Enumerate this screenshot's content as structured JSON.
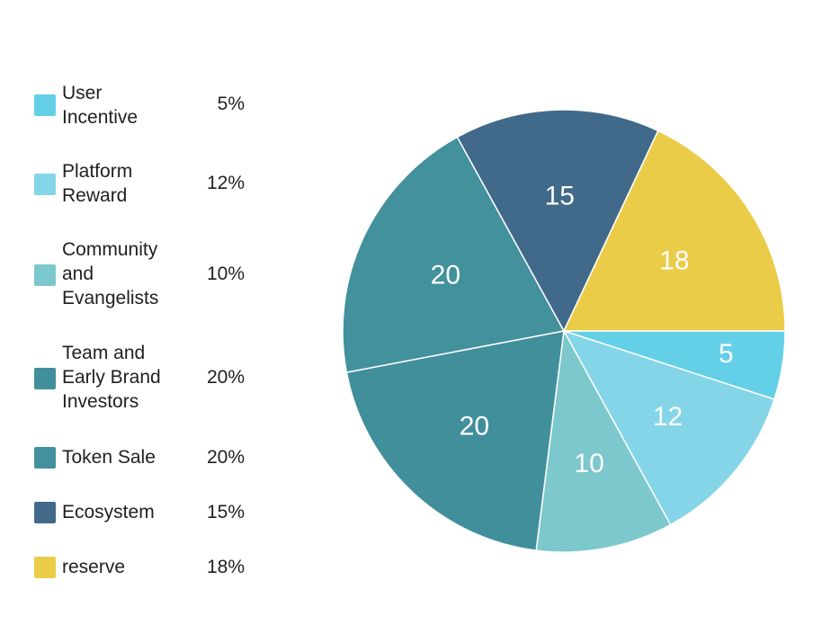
{
  "chart_data": {
    "type": "pie",
    "categories": [
      "User Incentive",
      "Platform Reward",
      "Community and Evangelists",
      "Team and Early Brand Investors",
      "Token Sale",
      "Ecosystem",
      "reserve"
    ],
    "values": [
      5,
      12,
      10,
      20,
      20,
      15,
      18
    ],
    "data_labels": [
      "5",
      "12",
      "10",
      "20",
      "20",
      "15",
      "18"
    ],
    "legend_percent": [
      "5%",
      "12%",
      "10%",
      "20%",
      "20%",
      "15%",
      "18%"
    ],
    "colors": [
      "#64d0e8",
      "#84d5e8",
      "#7cc8cc",
      "#428f9c",
      "#42919c",
      "#40698a",
      "#ebcc48"
    ],
    "legend_position": "left",
    "start_angle_deg": 0,
    "direction": "clockwise"
  }
}
